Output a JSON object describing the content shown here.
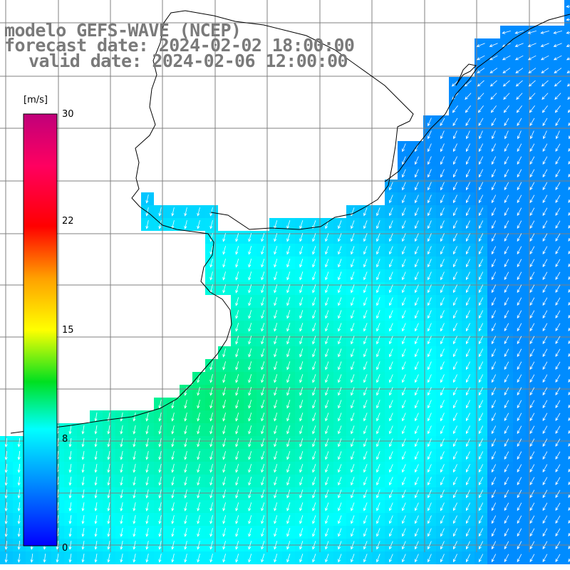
{
  "title": {
    "line1": "modelo GEFS-WAVE (NCEP)",
    "line2": "forecast date: 2024-02-02 18:00:00",
    "line3": "valid date: 2024-02-06 12:00:00"
  },
  "colorbar": {
    "unit": "[m/s]",
    "ticks": [
      {
        "value": 30,
        "label": "30"
      },
      {
        "value": 22,
        "label": "22"
      },
      {
        "value": 15,
        "label": "15"
      },
      {
        "value": 8,
        "label": "8"
      },
      {
        "value": 0,
        "label": "0"
      }
    ],
    "min": 0,
    "max": 30
  },
  "map": {
    "variable": "wind speed and direction",
    "graticule_spacing_deg": 1,
    "land_color": "#ffffff",
    "arrow_color": "#ffffff",
    "coastline_color": "#000000",
    "grid_color": "#808080"
  }
}
